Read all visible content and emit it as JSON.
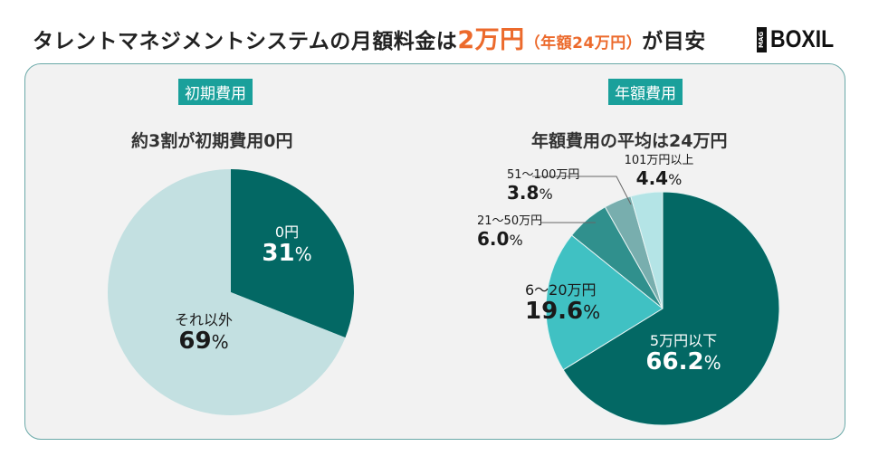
{
  "header": {
    "title_pre": "タレントマネジメントシステムの月額料金は",
    "title_highlight": "2万円",
    "title_paren": "（年額24万円）",
    "title_post": "が目安",
    "logo_mag": "MAG",
    "logo_text": "BOXIL"
  },
  "colors": {
    "accent_orange": "#ec6a2c",
    "tag_teal": "#1aa09b",
    "panel_bg": "#f2f2f2",
    "panel_border": "#6aa9a8"
  },
  "chart_data": [
    {
      "type": "pie",
      "tag": "初期費用",
      "title": "約3割が初期費用0円",
      "slices": [
        {
          "label": "0円",
          "value": 31,
          "value_text": "31",
          "color": "#036864"
        },
        {
          "label": "それ以外",
          "value": 69,
          "value_text": "69",
          "color": "#c3e0e1"
        }
      ],
      "unit": "%",
      "start": "12 o'clock",
      "direction": "clockwise"
    },
    {
      "type": "pie",
      "tag": "年額費用",
      "title": "年額費用の平均は24万円",
      "slices": [
        {
          "label": "5万円以下",
          "value": 66.2,
          "value_text": "66.2",
          "color": "#036864"
        },
        {
          "label": "6〜20万円",
          "value": 19.6,
          "value_text": "19.6",
          "color": "#40c1c3"
        },
        {
          "label": "21〜50万円",
          "value": 6.0,
          "value_text": "6.0",
          "color": "#30908d"
        },
        {
          "label": "51〜100万円",
          "value": 3.8,
          "value_text": "3.8",
          "color": "#78aeae"
        },
        {
          "label": "101万円以上",
          "value": 4.4,
          "value_text": "4.4",
          "color": "#b4e4e6"
        }
      ],
      "unit": "%",
      "start": "12 o'clock",
      "direction": "clockwise"
    }
  ]
}
